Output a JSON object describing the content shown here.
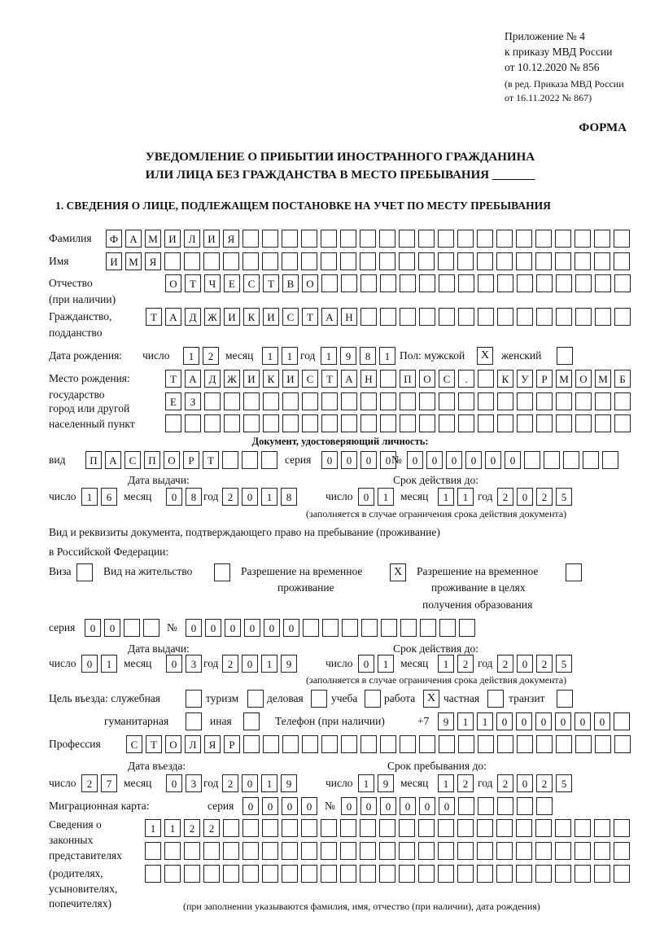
{
  "header": {
    "line1": "Приложение № 4",
    "line2": "к приказу МВД России",
    "line3": "от 10.12.2020 № 856",
    "line4": "(в ред. Приказа МВД России",
    "line5": "от 16.11.2022 № 867)",
    "form": "ФОРМА",
    "title1": "УВЕДОМЛЕНИЕ О ПРИБЫТИИ ИНОСТРАННОГО ГРАЖДАНИНА",
    "title2": "ИЛИ ЛИЦА БЕЗ ГРАЖДАНСТВА В МЕСТО ПРЕБЫВАНИЯ _______",
    "section1": "1. СВЕДЕНИЯ О ЛИЦЕ, ПОДЛЕЖАЩЕМ ПОСТАНОВКЕ НА УЧЕТ ПО МЕСТУ ПРЕБЫВАНИЯ"
  },
  "person": {
    "surname_label": "Фамилия",
    "surname": "ФАМИЛИЯ",
    "name_label": "Имя",
    "name": "ИМЯ",
    "patronymic_label": "Отчество",
    "patronymic_note": "(при наличии)",
    "patronymic": "ОТЧЕСТВО",
    "citizenship_label": "Гражданство,",
    "citizenship_label2": "подданство",
    "citizenship": "ТАДЖИКИСТАН",
    "dob_label": "Дата рождения:",
    "day_label": "число",
    "month_label": "месяц",
    "year_label": "год",
    "dob_day": "12",
    "dob_month": "11",
    "dob_year": "1981",
    "sex_label": "Пол: мужской",
    "male": "X",
    "female_label": "женский",
    "female": "",
    "pob_label1": "Место рождения:",
    "pob_label2": "государство",
    "pob_label3": "город или другой",
    "pob_label4": "населенный пункт",
    "pob_row1": "ТАДЖИКИСТАН ПОС. КУРМОМБ",
    "pob_row2": "ЕЗ",
    "pob_row3": ""
  },
  "id_doc": {
    "heading": "Документ, удостоверяющий личность:",
    "kind_label": "вид",
    "kind": "ПАСПОРТ",
    "series_label": "серия",
    "series": "0000",
    "number_label": "№",
    "number": "000000",
    "issue_label": "Дата выдачи:",
    "valid_label": "Срок действия до:",
    "issue_day": "16",
    "issue_month": "08",
    "issue_year": "2018",
    "valid_day": "01",
    "valid_month": "11",
    "valid_year": "2025",
    "note": "(заполняется в случае ограничения срока действия документа)"
  },
  "stay_doc": {
    "heading1": "Вид и реквизиты документа, подтверждающего право на пребывание (проживание)",
    "heading2": "в Российской Федерации:",
    "visa_label": "Виза",
    "visa": "",
    "residence_label": "Вид на жительство",
    "residence": "",
    "trp_label1": "Разрешение на временное",
    "trp_label2": "проживание",
    "trp": "X",
    "trp_edu_label1": "Разрешение на временное",
    "trp_edu_label2": "проживание в целях",
    "trp_edu_label3": "получения образования",
    "trp_edu": "",
    "series_label": "серия",
    "series": "00",
    "number_label": "№",
    "number": "000000",
    "issue_label": "Дата выдачи:",
    "valid_label": "Срок действия до:",
    "issue_day": "01",
    "issue_month": "03",
    "issue_year": "2019",
    "valid_day": "01",
    "valid_month": "12",
    "valid_year": "2025",
    "note": "(заполняется в случае ограничения срока действия документа)"
  },
  "purpose": {
    "label": "Цель въезда: служебная",
    "official": "",
    "tourism_label": "туризм",
    "tourism": "",
    "business_label": "деловая",
    "business": "",
    "study_label": "учеба",
    "study": "",
    "work_label": "работа",
    "work": "X",
    "private_label": "частная",
    "private": "",
    "transit_label": "транзит",
    "transit": "",
    "humanitarian_label": "гуманитарная",
    "humanitarian": "",
    "other_label": "иная",
    "other": "",
    "phone_label": "Телефон (при наличии)",
    "phone_prefix": "+7",
    "phone": "911000000"
  },
  "profession": {
    "label": "Профессия",
    "value": "СТОЛЯР"
  },
  "entry": {
    "entry_label": "Дата въезда:",
    "stay_label": "Срок пребывания до:",
    "entry_day": "27",
    "entry_month": "03",
    "entry_year": "2019",
    "stay_day": "19",
    "stay_month": "12",
    "stay_year": "2025"
  },
  "migration": {
    "label": "Миграционная карта:",
    "series_label": "серия",
    "series": "0000",
    "number_label": "№",
    "number": "000000"
  },
  "guardians": {
    "label1": "Сведения о",
    "label2": "законных",
    "label3": "представителях",
    "label4": "(родителях,",
    "label5": "усыновителях,",
    "label6": "попечителях)",
    "row1": "1122",
    "row2": "",
    "row3": "",
    "note": "(при заполнении указываются фамилия, имя, отчество (при наличии), дата рождения)"
  }
}
